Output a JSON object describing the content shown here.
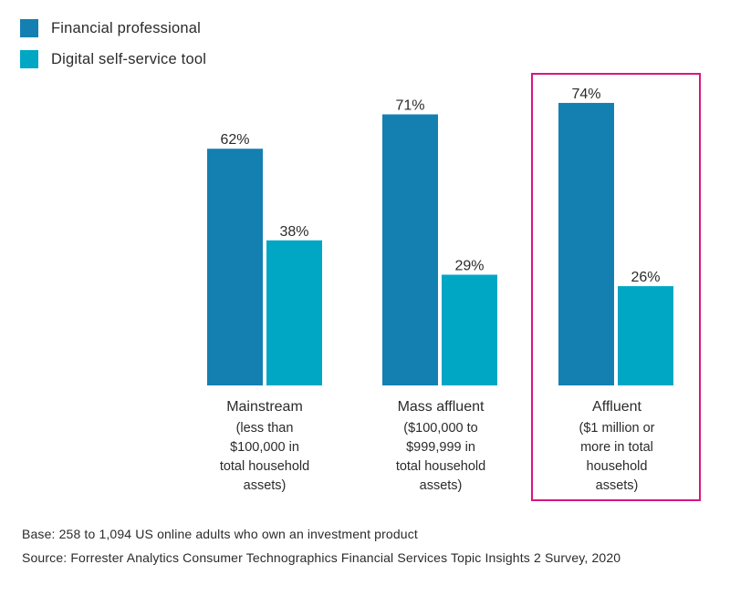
{
  "chart_data": {
    "type": "bar",
    "categories": [
      "Mainstream",
      "Mass affluent",
      "Affluent"
    ],
    "category_subtitles": [
      [
        "(less than",
        "$100,000 in",
        "total household",
        "assets)"
      ],
      [
        "($100,000 to",
        "$999,999 in",
        "total household",
        "assets)"
      ],
      [
        "($1 million or",
        "more in total",
        "household",
        "assets)"
      ]
    ],
    "series": [
      {
        "name": "Financial professional",
        "values": [
          62,
          71,
          74
        ],
        "color": "#1480b2"
      },
      {
        "name": "Digital self-service tool",
        "values": [
          38,
          29,
          26
        ],
        "color": "#00a7c4"
      }
    ],
    "data_labels": [
      [
        "62%",
        "71%",
        "74%"
      ],
      [
        "38%",
        "29%",
        "26%"
      ]
    ],
    "ylim": [
      0,
      100
    ],
    "unit": "%",
    "legend_position": "top-left",
    "grid": false,
    "highlighted_category": "Affluent",
    "highlight_color": "#d6177f"
  },
  "footer": {
    "base": "Base: 258 to 1,094 US online adults who own an investment product",
    "source": "Source: Forrester Analytics Consumer Technographics Financial Services Topic Insights 2 Survey, 2020"
  }
}
